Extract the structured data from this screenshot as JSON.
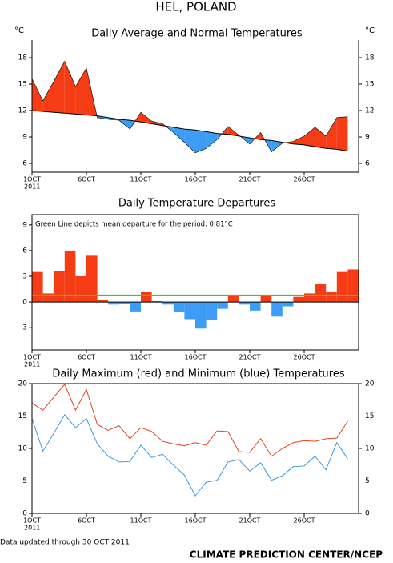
{
  "title": "HEL, POLAND",
  "footer_note": "Data updated through 30 OCT 2011",
  "credit": "CLIMATE PREDICTION CENTER/NCEP",
  "chart_data": [
    {
      "type": "anomaly_area",
      "title": "Daily Average and Normal Temperatures",
      "y_label": "°C",
      "categories": [
        "1OCT",
        null,
        null,
        null,
        null,
        "6OCT",
        null,
        null,
        null,
        null,
        "11OCT",
        null,
        null,
        null,
        null,
        "16OCT",
        null,
        null,
        null,
        null,
        "21OCT",
        null,
        null,
        null,
        null,
        "26OCT",
        null,
        null,
        null,
        null
      ],
      "x_year": "2011",
      "values": [
        15.6,
        13.1,
        15.3,
        17.6,
        14.7,
        16.8,
        11.2,
        11.0,
        10.9,
        9.9,
        11.8,
        10.8,
        10.5,
        9.5,
        8.4,
        7.2,
        7.7,
        8.7,
        10.2,
        9.2,
        8.2,
        9.5,
        7.3,
        8.3,
        8.5,
        9.1,
        10.1,
        9.1,
        11.2,
        11.3
      ],
      "normal": [
        12.0,
        11.9,
        11.8,
        11.7,
        11.6,
        11.5,
        11.4,
        11.2,
        11.0,
        10.9,
        10.7,
        10.5,
        10.3,
        10.1,
        9.9,
        9.8,
        9.6,
        9.4,
        9.3,
        9.1,
        8.9,
        8.7,
        8.6,
        8.4,
        8.2,
        8.1,
        7.9,
        7.7,
        7.6,
        7.4
      ],
      "above_color": "#f53c14",
      "below_color": "#3d9cf5",
      "ylim": [
        5,
        20
      ],
      "yticks": [
        6,
        9,
        12,
        15,
        18
      ],
      "right_axis": true
    },
    {
      "type": "bar",
      "title": "Daily Temperature Departures",
      "annotation": "Green Line depicts mean departure for the period: 0.81°C",
      "categories": [
        "1OCT",
        null,
        null,
        null,
        null,
        "6OCT",
        null,
        null,
        null,
        null,
        "11OCT",
        null,
        null,
        null,
        null,
        "16OCT",
        null,
        null,
        null,
        null,
        "21OCT",
        null,
        null,
        null,
        null,
        "26OCT",
        null,
        null,
        null,
        null
      ],
      "x_year": "2011",
      "values": [
        3.5,
        1.0,
        3.6,
        6.0,
        3.0,
        5.4,
        0.2,
        -0.3,
        -0.2,
        -1.1,
        1.2,
        0.1,
        -0.3,
        -1.2,
        -2.0,
        -3.1,
        -2.1,
        -0.8,
        0.8,
        -0.3,
        -1.0,
        0.8,
        -1.7,
        -0.5,
        0.6,
        1.0,
        2.1,
        1.2,
        3.5,
        3.8
      ],
      "pos_color": "#f53c14",
      "neg_color": "#3d9cf5",
      "mean": 0.81,
      "mean_color": "#33cc33",
      "ylim": [
        -5.6,
        10.2
      ],
      "yticks": [
        -3,
        0,
        3,
        6,
        9
      ],
      "right_axis": false
    },
    {
      "type": "line",
      "title": "Daily Maximum (red) and Minimum (blue) Temperatures",
      "categories": [
        "1OCT",
        null,
        null,
        null,
        null,
        "6OCT",
        null,
        null,
        null,
        null,
        "11OCT",
        null,
        null,
        null,
        null,
        "16OCT",
        null,
        null,
        null,
        null,
        "21OCT",
        null,
        null,
        null,
        null,
        "26OCT",
        null,
        null,
        null,
        null
      ],
      "x_year": "2011",
      "series": [
        {
          "color": "#e8401c",
          "values": [
            17.0,
            15.9,
            17.9,
            19.9,
            15.9,
            19.1,
            13.7,
            12.8,
            13.5,
            11.5,
            13.2,
            12.6,
            11.1,
            10.7,
            10.4,
            10.9,
            10.5,
            12.7,
            12.6,
            9.5,
            9.4,
            11.5,
            8.8,
            10.0,
            10.9,
            11.2,
            11.1,
            11.5,
            11.6,
            14.2
          ]
        },
        {
          "color": "#3d9ad8",
          "values": [
            14.6,
            9.6,
            12.3,
            15.2,
            13.2,
            14.6,
            10.7,
            8.8,
            7.9,
            8.0,
            10.5,
            8.6,
            9.1,
            7.4,
            5.9,
            2.7,
            4.8,
            5.1,
            7.9,
            8.3,
            6.5,
            7.8,
            5.1,
            5.8,
            7.2,
            7.3,
            8.8,
            6.7,
            10.9,
            8.4
          ]
        }
      ],
      "ylim": [
        0,
        20
      ],
      "yticks": [
        0,
        5,
        10,
        15,
        20
      ],
      "right_axis": true
    }
  ]
}
